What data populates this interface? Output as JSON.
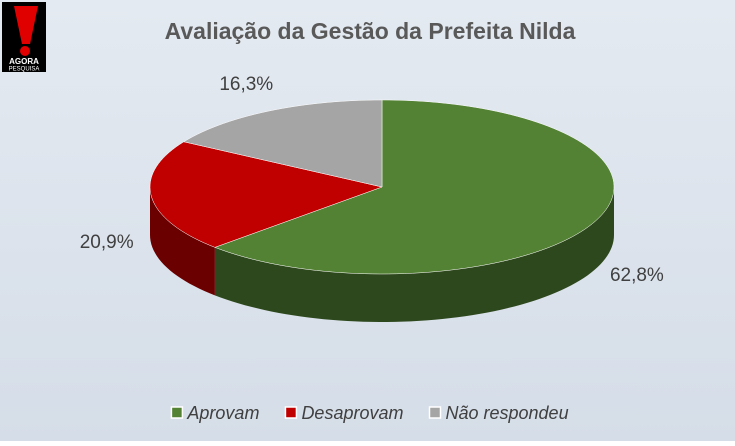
{
  "logo": {
    "brand": "AGORA",
    "tagline": "PESQUISA"
  },
  "chart_data": {
    "type": "pie3d",
    "title": "Avaliação da Gestão da Prefeita Nilda",
    "categories": [
      "Aprovam",
      "Desaprovam",
      "Não respondeu"
    ],
    "values": [
      62.8,
      20.9,
      16.3
    ],
    "value_labels": [
      "62,8%",
      "20,9%",
      "16,3%"
    ],
    "colors": [
      "#548235",
      "#c00000",
      "#a5a5a5"
    ],
    "legend": "bottom"
  }
}
